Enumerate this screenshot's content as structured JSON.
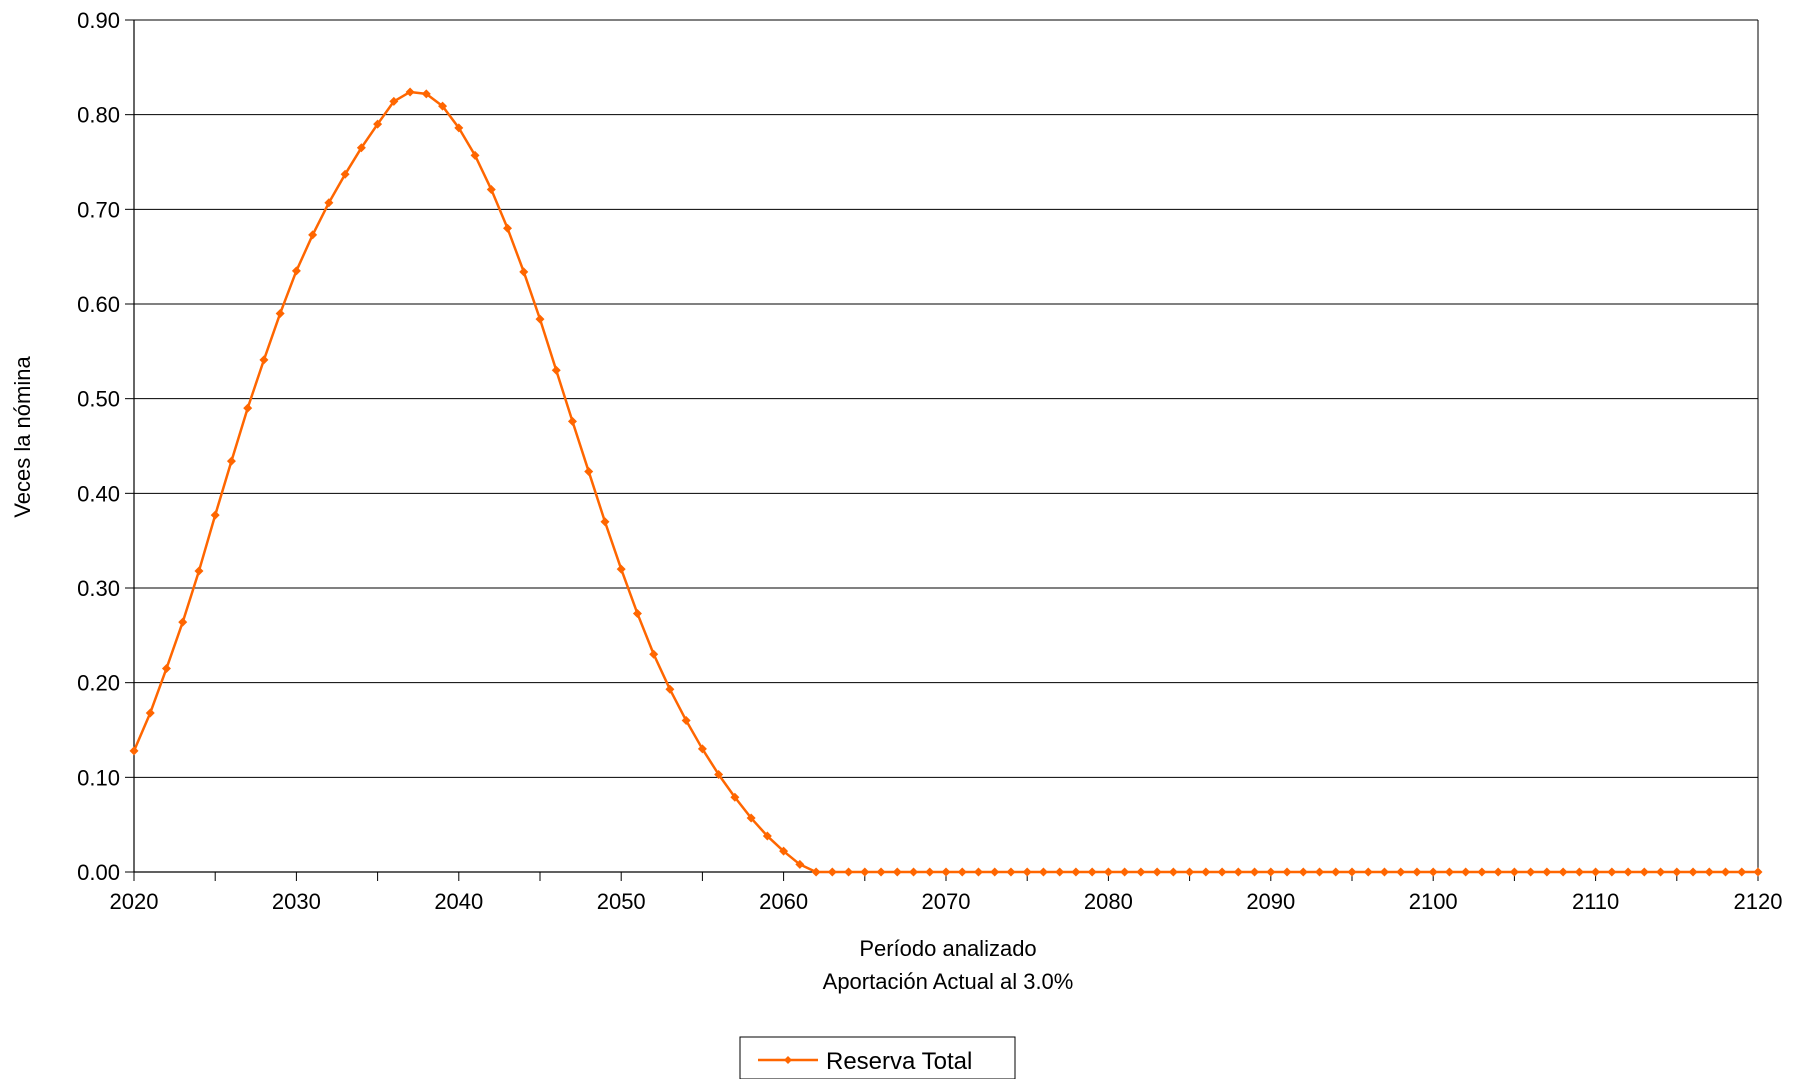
{
  "chart_data": {
    "type": "line",
    "title": "",
    "xlabel": "Período analizado",
    "xlabel_sub": "Aportación Actual al 3.0%",
    "ylabel": "Veces la nómina",
    "xlim": [
      2020,
      2120
    ],
    "ylim": [
      0,
      0.9
    ],
    "x_ticks": [
      "2020",
      "2030",
      "2040",
      "2050",
      "2060",
      "2070",
      "2080",
      "2090",
      "2100",
      "2110",
      "2120"
    ],
    "y_ticks": [
      "0.00",
      "0.10",
      "0.20",
      "0.30",
      "0.40",
      "0.50",
      "0.60",
      "0.70",
      "0.80",
      "0.90"
    ],
    "grid": "horizontal",
    "legend_position": "bottom-center",
    "series": [
      {
        "name": "Reserva Total",
        "color": "#FF6600",
        "marker": "diamond",
        "x": [
          2020,
          2021,
          2022,
          2023,
          2024,
          2025,
          2026,
          2027,
          2028,
          2029,
          2030,
          2031,
          2032,
          2033,
          2034,
          2035,
          2036,
          2037,
          2038,
          2039,
          2040,
          2041,
          2042,
          2043,
          2044,
          2045,
          2046,
          2047,
          2048,
          2049,
          2050,
          2051,
          2052,
          2053,
          2054,
          2055,
          2056,
          2057,
          2058,
          2059,
          2060,
          2061,
          2062,
          2063,
          2064,
          2065,
          2066,
          2067,
          2068,
          2069,
          2070,
          2071,
          2072,
          2073,
          2074,
          2075,
          2076,
          2077,
          2078,
          2079,
          2080,
          2081,
          2082,
          2083,
          2084,
          2085,
          2086,
          2087,
          2088,
          2089,
          2090,
          2091,
          2092,
          2093,
          2094,
          2095,
          2096,
          2097,
          2098,
          2099,
          2100,
          2101,
          2102,
          2103,
          2104,
          2105,
          2106,
          2107,
          2108,
          2109,
          2110,
          2111,
          2112,
          2113,
          2114,
          2115,
          2116,
          2117,
          2118,
          2119,
          2120
        ],
        "values": [
          0.128,
          0.168,
          0.215,
          0.264,
          0.318,
          0.377,
          0.434,
          0.49,
          0.541,
          0.59,
          0.635,
          0.673,
          0.707,
          0.737,
          0.765,
          0.79,
          0.814,
          0.824,
          0.822,
          0.809,
          0.786,
          0.757,
          0.721,
          0.68,
          0.634,
          0.584,
          0.53,
          0.476,
          0.423,
          0.37,
          0.32,
          0.273,
          0.23,
          0.193,
          0.16,
          0.13,
          0.103,
          0.079,
          0.057,
          0.038,
          0.022,
          0.008,
          0.0,
          0.0,
          0.0,
          0.0,
          0.0,
          0.0,
          0.0,
          0.0,
          0.0,
          0.0,
          0.0,
          0.0,
          0.0,
          0.0,
          0.0,
          0.0,
          0.0,
          0.0,
          0.0,
          0.0,
          0.0,
          0.0,
          0.0,
          0.0,
          0.0,
          0.0,
          0.0,
          0.0,
          0.0,
          0.0,
          0.0,
          0.0,
          0.0,
          0.0,
          0.0,
          0.0,
          0.0,
          0.0,
          0.0,
          0.0,
          0.0,
          0.0,
          0.0,
          0.0,
          0.0,
          0.0,
          0.0,
          0.0,
          0.0,
          0.0,
          0.0,
          0.0,
          0.0,
          0.0,
          0.0,
          0.0,
          0.0,
          0.0,
          0.0
        ]
      }
    ]
  }
}
